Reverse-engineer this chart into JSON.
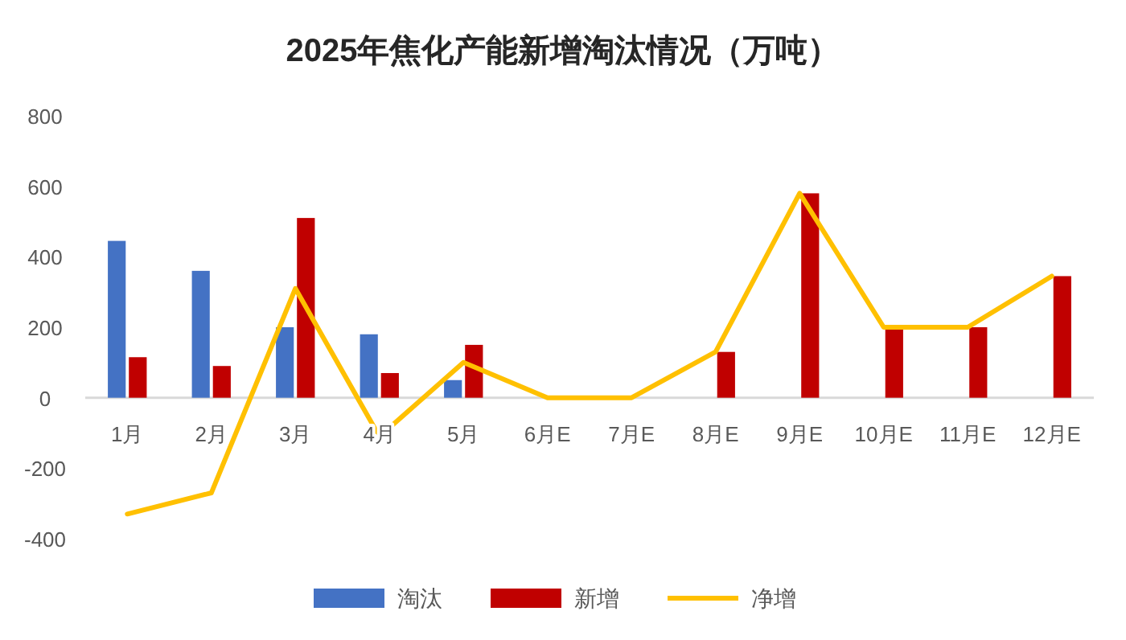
{
  "chart_data": {
    "type": "bar",
    "title": "2025年焦化产能新增淘汰情况（万吨）",
    "categories": [
      "1月",
      "2月",
      "3月",
      "4月",
      "5月",
      "6月E",
      "7月E",
      "8月E",
      "9月E",
      "10月E",
      "11月E",
      "12月E"
    ],
    "series": [
      {
        "name": "淘汰",
        "color": "#4472c4",
        "values": [
          445,
          360,
          200,
          180,
          50,
          null,
          null,
          null,
          null,
          null,
          null,
          null
        ]
      },
      {
        "name": "新增",
        "color": "#c00000",
        "values": [
          115,
          90,
          510,
          70,
          150,
          null,
          null,
          130,
          580,
          200,
          200,
          345
        ]
      },
      {
        "name": "净增",
        "type": "line",
        "color": "#ffc000",
        "values": [
          -330,
          -270,
          310,
          -110,
          100,
          0,
          0,
          130,
          580,
          200,
          200,
          345
        ]
      }
    ],
    "ylim": [
      -400,
      800
    ],
    "yticks": [
      -400,
      -200,
      0,
      200,
      400,
      600,
      800
    ],
    "grid": false,
    "legend": "bottom",
    "marker": "none"
  }
}
